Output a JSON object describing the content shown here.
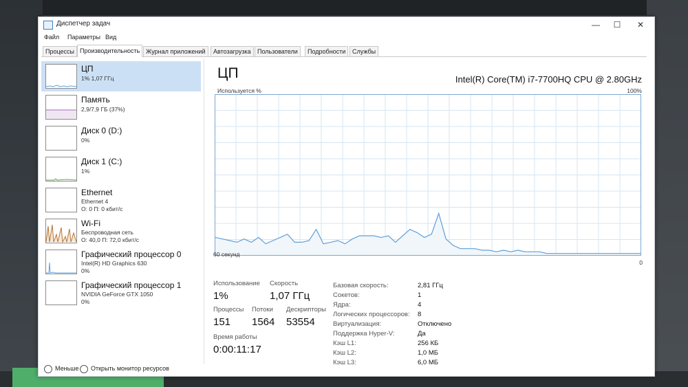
{
  "window": {
    "title": "Диспетчер задач"
  },
  "menu": [
    "Файл",
    "Параметры",
    "Вид"
  ],
  "tabs": [
    "Процессы",
    "Производительность",
    "Журнал приложений",
    "Автозагрузка",
    "Пользователи",
    "Подробности",
    "Службы"
  ],
  "active_tab": "Производительность",
  "sidebar": {
    "items": [
      {
        "name": "ЦП",
        "line1": "1% 1,07 ГГц",
        "line2": ""
      },
      {
        "name": "Память",
        "line1": "2,9/7,9 ГБ (37%)",
        "line2": ""
      },
      {
        "name": "Диск 0 (D:)",
        "line1": "0%",
        "line2": ""
      },
      {
        "name": "Диск 1 (C:)",
        "line1": "1%",
        "line2": ""
      },
      {
        "name": "Ethernet",
        "line1": "Ethernet 4",
        "line2": "О: 0 П: 0 кбит/с"
      },
      {
        "name": "Wi-Fi",
        "line1": "Беспроводная сеть",
        "line2": "О: 40,0 П: 72,0 кбит/с"
      },
      {
        "name": "Графический процессор 0",
        "line1": "Intel(R) HD Graphics 630",
        "line2": "0%"
      },
      {
        "name": "Графический процессор 1",
        "line1": "NVIDIA GeForce GTX 1050",
        "line2": "0%"
      }
    ]
  },
  "main": {
    "title": "ЦП",
    "cpu_name": "Intel(R) Core(TM) i7-7700HQ CPU @ 2.80GHz",
    "usage_label": "Используется %",
    "max_label": "100%",
    "time_label": "60 секунд",
    "min_label": "0",
    "stats": {
      "usage_label": "Использование",
      "usage_value": "1%",
      "speed_label": "Скорость",
      "speed_value": "1,07 ГГц",
      "processes_label": "Процессы",
      "processes_value": "151",
      "threads_label": "Потоки",
      "threads_value": "1564",
      "handles_label": "Дескрипторы",
      "handles_value": "53554",
      "uptime_label": "Время работы",
      "uptime_value": "0:00:11:17"
    },
    "details": [
      {
        "label": "Базовая скорость:",
        "value": "2,81 ГГц"
      },
      {
        "label": "Сокетов:",
        "value": "1"
      },
      {
        "label": "Ядра:",
        "value": "4"
      },
      {
        "label": "Логических процессоров:",
        "value": "8"
      },
      {
        "label": "Виртуализация:",
        "value": "Отключено"
      },
      {
        "label": "Поддержка Hyper-V:",
        "value": "Да"
      },
      {
        "label": "Кэш L1:",
        "value": "256 КБ"
      },
      {
        "label": "Кэш L2:",
        "value": "1,0 МБ"
      },
      {
        "label": "Кэш L3:",
        "value": "6,0 МБ"
      }
    ]
  },
  "footer": {
    "less": "Меньше",
    "resource_monitor": "Открыть монитор ресурсов"
  },
  "chart_data": {
    "type": "line",
    "ylim": [
      0,
      100
    ],
    "grid": true,
    "series": [
      {
        "values": [
          11,
          10,
          9,
          8,
          10,
          8,
          11,
          7,
          9,
          11,
          13,
          8,
          8,
          9,
          16,
          7,
          8,
          9,
          7,
          10,
          12,
          12,
          12,
          11,
          12,
          8,
          12,
          16,
          14,
          11,
          13,
          26,
          10,
          6,
          4,
          4,
          4,
          3,
          3,
          2,
          3,
          2,
          3,
          2,
          2,
          2,
          1,
          1,
          1,
          1,
          1,
          1,
          1,
          1,
          1,
          1,
          1,
          1,
          1,
          1
        ]
      }
    ]
  },
  "colors": {
    "graph_line": "#5f9fd6",
    "graph_fill": "#f1f6fb",
    "grid": "#d6e5f3",
    "selected": "#cce0f5"
  }
}
